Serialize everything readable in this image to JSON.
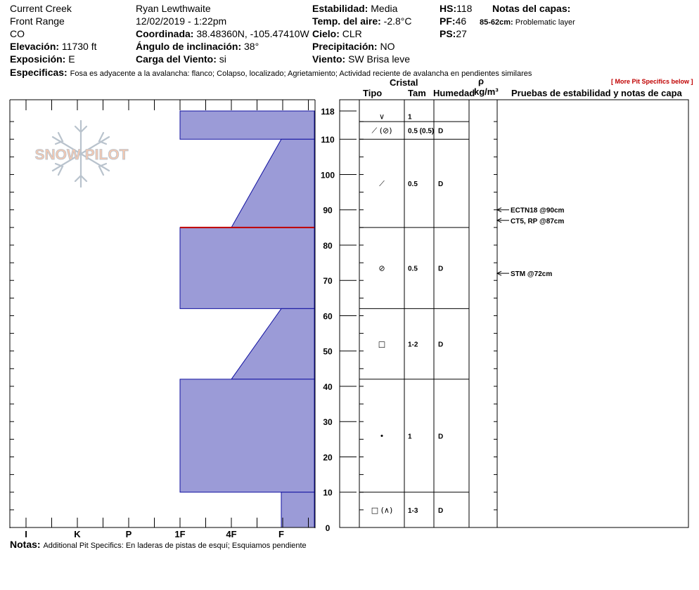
{
  "header": {
    "location": "Current Creek",
    "range": "Front Range",
    "state": "CO",
    "elevation_label": "Elevación:",
    "elevation_value": "11730 ft",
    "aspect_label": "Exposición:",
    "aspect_value": "E",
    "observer": "Ryan Lewthwaite",
    "datetime": "12/02/2019 - 1:22pm",
    "coord_label": "Coordinada:",
    "coord_value": "38.48360N, -105.47410W",
    "slope_label": "Ángulo de inclinación:",
    "slope_value": "38°",
    "wind_load_label": "Carga del Viento:",
    "wind_load_value": "si",
    "stability_label": "Estabilidad:",
    "stability_value": "Media",
    "air_temp_label": "Temp. del aire:",
    "air_temp_value": "-2.8°C",
    "sky_label": "Cielo:",
    "sky_value": "CLR",
    "precip_label": "Precipitación:",
    "precip_value": "NO",
    "wind_label": "Viento:",
    "wind_value": "SW Brisa leve",
    "hs_label": "HS:",
    "hs_value": "118",
    "pf_label": "PF:",
    "pf_value": "46",
    "ps_label": "PS:",
    "ps_value": "27",
    "layer_notes_label": "Notas del capas:",
    "layer_note_range": "85-62cm:",
    "layer_note_text": "Problematic layer",
    "specifics_label": "Especificas:",
    "specifics_text": "Fosa es adyacente a la avalancha: flanco;  Colapso, localizado;  Agrietamiento;  Actividad reciente de avalancha en pendientes similares",
    "more_link": "[ More Pit Specifics below ]"
  },
  "logo": {
    "text": "SNOW PILOT"
  },
  "columns": {
    "crystal": "Cristal",
    "type": "Tipo",
    "size": "Tam",
    "moisture": "Humedad",
    "rho": "ρ",
    "density_unit": "kg/m³",
    "tests": "Pruebas de estabilidad y notas de capa"
  },
  "chart_data": {
    "type": "snow-profile",
    "depth_range": [
      0,
      118
    ],
    "depth_ticks": [
      0,
      10,
      20,
      30,
      40,
      50,
      60,
      70,
      80,
      90,
      100,
      110,
      118
    ],
    "hardness_scale": [
      "I",
      "K",
      "P",
      "1F",
      "4F",
      "F"
    ],
    "hardness_layers": [
      {
        "top": 118,
        "bottom": 110,
        "hardness_top": "1F",
        "hardness_bottom": "1F"
      },
      {
        "top": 110,
        "bottom": 85,
        "hardness_top": "F",
        "hardness_bottom": "4F"
      },
      {
        "top": 85,
        "bottom": 62,
        "hardness_top": "1F",
        "hardness_bottom": "1F"
      },
      {
        "top": 62,
        "bottom": 42,
        "hardness_top": "F",
        "hardness_bottom": "4F"
      },
      {
        "top": 42,
        "bottom": 10,
        "hardness_top": "1F",
        "hardness_bottom": "1F"
      },
      {
        "top": 10,
        "bottom": 0,
        "hardness_top": "F",
        "hardness_bottom": "F"
      }
    ],
    "problem_interface_depth": 85,
    "layer_rows": [
      {
        "top": 118,
        "bottom": 115,
        "type": "∨",
        "size": "1",
        "moisture": ""
      },
      {
        "top": 115,
        "bottom": 110,
        "type": "⟋ (⊘)",
        "size": "0.5 (0.5)",
        "moisture": "D"
      },
      {
        "top": 110,
        "bottom": 85,
        "type": "⟋",
        "size": "0.5",
        "moisture": "D"
      },
      {
        "top": 85,
        "bottom": 62,
        "type": "⊘",
        "size": "0.5",
        "moisture": "D"
      },
      {
        "top": 62,
        "bottom": 42,
        "type": "□",
        "size": "1-2",
        "moisture": "D"
      },
      {
        "top": 42,
        "bottom": 10,
        "type": "•",
        "size": "1",
        "moisture": "D"
      },
      {
        "top": 10,
        "bottom": 0,
        "type": "□ (∧)",
        "size": "1-3",
        "moisture": "D"
      }
    ],
    "tests": [
      {
        "depth": 90,
        "label": "ECTN18 @90cm"
      },
      {
        "depth": 87,
        "label": "CT5, RP @87cm"
      },
      {
        "depth": 72,
        "label": "STM @72cm"
      }
    ]
  },
  "footer": {
    "notes_label": "Notas:",
    "notes_text": "Additional Pit Specifics: En laderas de pistas de esquí; Esquiamos pendiente"
  }
}
